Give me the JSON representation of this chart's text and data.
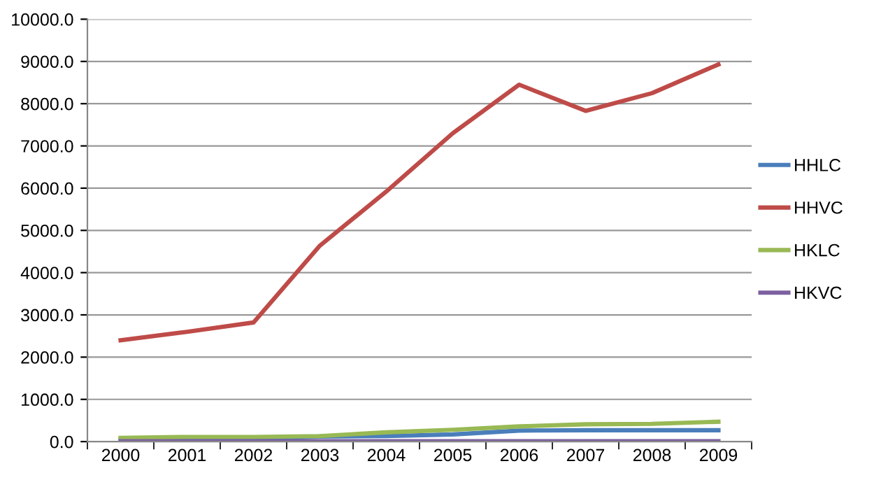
{
  "chart_data": {
    "type": "line",
    "categories": [
      "2000",
      "2001",
      "2002",
      "2003",
      "2004",
      "2005",
      "2006",
      "2007",
      "2008",
      "2009"
    ],
    "series": [
      {
        "name": "HHLC",
        "color": "#4a7ebb",
        "values": [
          50,
          60,
          60,
          120,
          130,
          170,
          260,
          270,
          270,
          270
        ]
      },
      {
        "name": "HHVC",
        "color": "#be4b48",
        "values": [
          2400,
          2600,
          2820,
          4640,
          5920,
          7300,
          8450,
          7830,
          8250,
          8930
        ]
      },
      {
        "name": "HKLC",
        "color": "#98b954",
        "values": [
          90,
          110,
          110,
          130,
          220,
          280,
          360,
          410,
          420,
          470
        ]
      },
      {
        "name": "HKVC",
        "color": "#7d60a0",
        "values": [
          10,
          10,
          10,
          10,
          10,
          10,
          10,
          10,
          10,
          10
        ]
      }
    ],
    "ylim": [
      0,
      10000
    ],
    "yticks": [
      {
        "value": 0,
        "label": "0.0"
      },
      {
        "value": 1000,
        "label": "1000.0"
      },
      {
        "value": 2000,
        "label": "2000.0"
      },
      {
        "value": 3000,
        "label": "3000.0"
      },
      {
        "value": 4000,
        "label": "4000.0"
      },
      {
        "value": 5000,
        "label": "5000.0"
      },
      {
        "value": 6000,
        "label": "6000.0"
      },
      {
        "value": 7000,
        "label": "7000.0"
      },
      {
        "value": 8000,
        "label": "8000.0"
      },
      {
        "value": 9000,
        "label": "9000.0"
      },
      {
        "value": 10000,
        "label": "10000.0"
      }
    ],
    "grid": "y",
    "legend": "right",
    "marker": "none",
    "line_style": "solid"
  }
}
